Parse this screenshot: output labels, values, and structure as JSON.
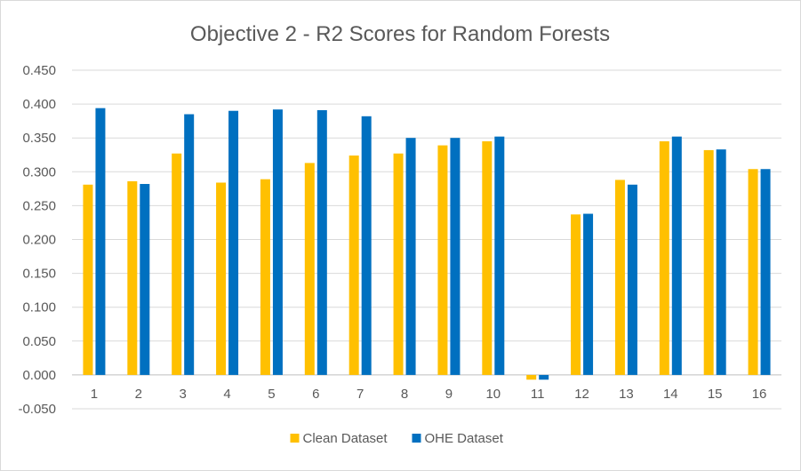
{
  "chart_data": {
    "type": "bar",
    "title": "Objective 2 - R2 Scores for Random Forests",
    "xlabel": "",
    "ylabel": "",
    "categories": [
      "1",
      "2",
      "3",
      "4",
      "5",
      "6",
      "7",
      "8",
      "9",
      "10",
      "11",
      "12",
      "13",
      "14",
      "15",
      "16"
    ],
    "series": [
      {
        "name": "Clean Dataset",
        "color": "#FFC000",
        "values": [
          0.281,
          0.286,
          0.327,
          0.284,
          0.289,
          0.313,
          0.324,
          0.327,
          0.339,
          0.345,
          -0.007,
          0.237,
          0.288,
          0.345,
          0.332,
          0.304
        ]
      },
      {
        "name": "OHE Dataset",
        "color": "#0070C0",
        "values": [
          0.394,
          0.282,
          0.385,
          0.39,
          0.392,
          0.391,
          0.382,
          0.35,
          0.35,
          0.352,
          -0.007,
          0.238,
          0.281,
          0.352,
          0.333,
          0.304
        ]
      }
    ],
    "ylim": [
      -0.05,
      0.45
    ],
    "yticks": [
      "0.450",
      "0.400",
      "0.350",
      "0.300",
      "0.250",
      "0.200",
      "0.150",
      "0.100",
      "0.050",
      "0.000",
      "-0.050"
    ],
    "grid": true,
    "legend_position": "bottom"
  }
}
